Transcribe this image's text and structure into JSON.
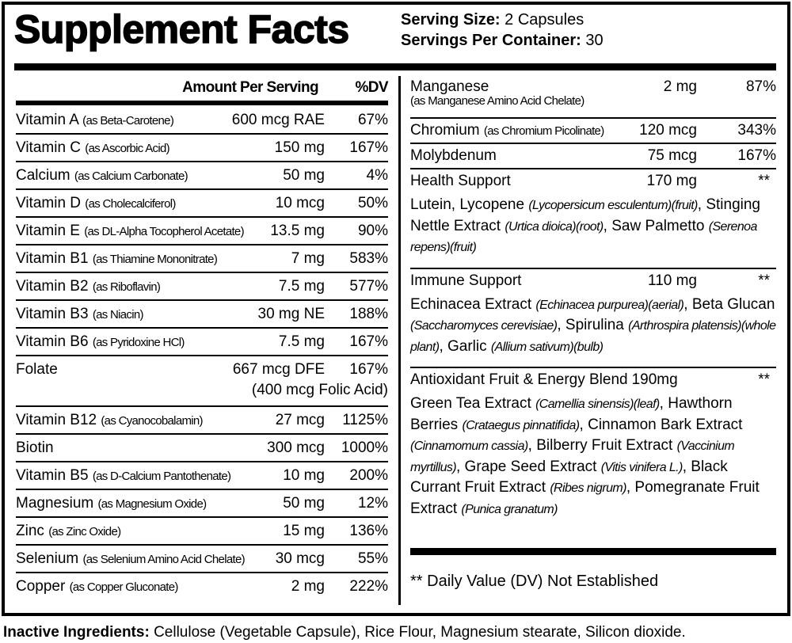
{
  "title": "Supplement Facts",
  "serving": {
    "size_label": "Serving Size:",
    "size_value": "2 Capsules",
    "per_label": "Servings Per Container:",
    "per_value": "30"
  },
  "header": {
    "amount": "Amount Per Serving",
    "dv": "%DV"
  },
  "left_rows": [
    {
      "name": "Vitamin A",
      "source": "(as Beta-Carotene)",
      "amount": "600 mcg RAE",
      "dv": "67%"
    },
    {
      "name": "Vitamin C",
      "source": "(as Ascorbic Acid)",
      "amount": "150 mg",
      "dv": "167%"
    },
    {
      "name": "Calcium",
      "source": "(as Calcium Carbonate)",
      "amount": "50 mg",
      "dv": "4%"
    },
    {
      "name": "Vitamin D",
      "source": "(as Cholecalciferol)",
      "amount": "10 mcg",
      "dv": "50%"
    },
    {
      "name": "Vitamin E",
      "source": "(as DL-Alpha Tocopherol Acetate)",
      "amount": "13.5 mg",
      "dv": "90%"
    },
    {
      "name": "Vitamin B1",
      "source": "(as Thiamine Mononitrate)",
      "amount": "7 mg",
      "dv": "583%"
    },
    {
      "name": "Vitamin B2",
      "source": "(as Riboflavin)",
      "amount": "7.5 mg",
      "dv": "577%"
    },
    {
      "name": "Vitamin B3",
      "source": "(as Niacin)",
      "amount": "30 mg NE",
      "dv": "188%"
    },
    {
      "name": "Vitamin B6",
      "source": "(as Pyridoxine HCl)",
      "amount": "7.5 mg",
      "dv": "167%"
    },
    {
      "name": "Folate",
      "source": "",
      "amount": "667 mcg DFE",
      "amount2": "(400 mcg Folic Acid)",
      "dv": "167%"
    },
    {
      "name": "Vitamin B12",
      "source": "(as Cyanocobalamin)",
      "amount": "27 mcg",
      "dv": "1125%"
    },
    {
      "name": "Biotin",
      "source": "",
      "amount": "300 mcg",
      "dv": "1000%"
    },
    {
      "name": "Vitamin B5",
      "source": "(as D-Calcium Pantothenate)",
      "amount": "10 mg",
      "dv": "200%"
    },
    {
      "name": "Magnesium",
      "source": "(as Magnesium Oxide)",
      "amount": "50 mg",
      "dv": "12%"
    },
    {
      "name": "Zinc",
      "source": "(as Zinc Oxide)",
      "amount": "15 mg",
      "dv": "136%"
    },
    {
      "name": "Selenium",
      "source": "(as Selenium Amino Acid Chelate)",
      "amount": "30 mcg",
      "dv": "55%"
    },
    {
      "name": "Copper",
      "source": "(as Copper Gluconate)",
      "amount": "2 mg",
      "dv": "222%"
    }
  ],
  "right_rows": [
    {
      "name": "Manganese",
      "source": "(as Manganese Amino Acid Chelate)",
      "amount": "2 mg",
      "dv": "87%"
    },
    {
      "name": "Chromium",
      "source": "(as Chromium Picolinate)",
      "amount": "120 mcg",
      "dv": "343%"
    },
    {
      "name": "Molybdenum",
      "source": "",
      "amount": "75 mcg",
      "dv": "167%"
    }
  ],
  "blends": [
    {
      "name": "Health Support",
      "amount": "170 mg",
      "dv": "**",
      "segments": [
        {
          "t": "Lutein, Lycopene ",
          "i": false
        },
        {
          "t": "(Lycopersicum esculentum)(fruit)",
          "i": true
        },
        {
          "t": ", Stinging Nettle Extract ",
          "i": false
        },
        {
          "t": "(Urtica dioica)(root)",
          "i": true
        },
        {
          "t": ", Saw Palmetto ",
          "i": false
        },
        {
          "t": "(Serenoa repens)(fruit)",
          "i": true
        }
      ]
    },
    {
      "name": "Immune Support",
      "amount": "110 mg",
      "dv": "**",
      "segments": [
        {
          "t": "Echinacea Extract ",
          "i": false
        },
        {
          "t": "(Echinacea purpurea)(aerial)",
          "i": true
        },
        {
          "t": ", Beta Glucan ",
          "i": false
        },
        {
          "t": "(Saccharomyces cerevisiae)",
          "i": true
        },
        {
          "t": ", Spirulina ",
          "i": false
        },
        {
          "t": "(Arthrospira platensis)(whole plant)",
          "i": true
        },
        {
          "t": ", Garlic ",
          "i": false
        },
        {
          "t": "(Allium sativum)(bulb)",
          "i": true
        }
      ]
    },
    {
      "name": "Antioxidant Fruit & Energy Blend",
      "amount": "190mg",
      "dv": "**",
      "segments": [
        {
          "t": "Green Tea Extract ",
          "i": false
        },
        {
          "t": "(Camellia sinensis)(leaf)",
          "i": true
        },
        {
          "t": ", Hawthorn Berries ",
          "i": false
        },
        {
          "t": "(Crataegus pinnatifida)",
          "i": true
        },
        {
          "t": ", Cinnamon Bark Extract ",
          "i": false
        },
        {
          "t": "(Cinnamomum cassia)",
          "i": true
        },
        {
          "t": ", Bilberry Fruit Extract ",
          "i": false
        },
        {
          "t": "(Vaccinium myrtillus)",
          "i": true
        },
        {
          "t": ", Grape Seed Extract ",
          "i": false
        },
        {
          "t": "(Vitis vinifera L.)",
          "i": true
        },
        {
          "t": ", Black Currant Fruit Extract ",
          "i": false
        },
        {
          "t": "(Ribes nigrum)",
          "i": true
        },
        {
          "t": ", Pomegranate Fruit Extract ",
          "i": false
        },
        {
          "t": "(Punica granatum)",
          "i": true
        }
      ]
    }
  ],
  "footnote": "** Daily Value (DV) Not Established",
  "inactive": {
    "label": "Inactive Ingredients:",
    "value": "Cellulose (Vegetable Capsule), Rice Flour, Magnesium stearate, Silicon dioxide."
  }
}
